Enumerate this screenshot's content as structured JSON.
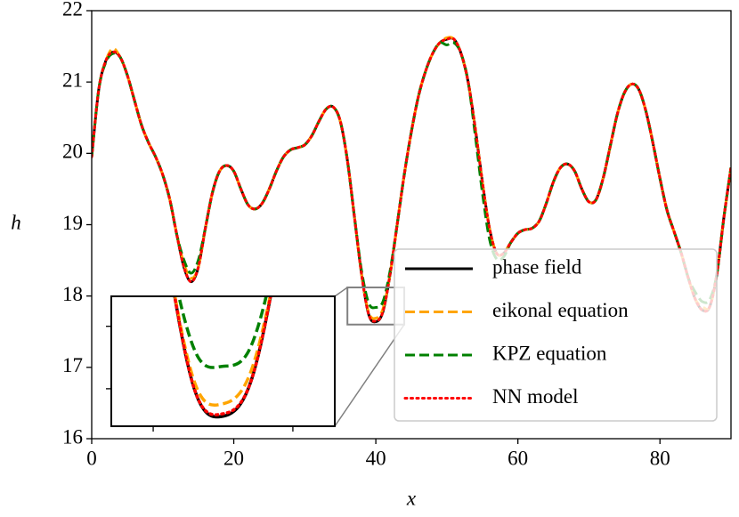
{
  "chart_data": {
    "type": "line",
    "xlabel": "x",
    "ylabel": "h",
    "x": [
      0,
      1,
      2,
      3,
      4,
      5,
      6,
      7,
      8,
      9,
      10,
      11,
      12,
      13,
      14,
      15,
      16,
      17,
      18,
      19,
      20,
      21,
      22,
      23,
      24,
      25,
      26,
      27,
      28,
      29,
      30,
      31,
      32,
      33,
      34,
      35,
      36,
      37,
      38,
      39,
      40,
      41,
      42,
      43,
      44,
      45,
      46,
      47,
      48,
      49,
      50,
      51,
      52,
      53,
      54,
      55,
      56,
      57,
      58,
      59,
      60,
      61,
      62,
      63,
      64,
      65,
      66,
      67,
      68,
      69,
      70,
      71,
      72,
      73,
      74,
      75,
      76,
      77,
      78,
      79,
      80,
      81,
      82,
      83,
      84,
      85,
      86,
      87,
      88,
      89,
      90
    ],
    "series": [
      {
        "name": "phase field",
        "color": "#000000",
        "dash": "solid",
        "values": [
          19.95,
          20.9,
          21.3,
          21.42,
          21.35,
          21.1,
          20.75,
          20.4,
          20.15,
          19.95,
          19.7,
          19.35,
          18.85,
          18.4,
          18.2,
          18.4,
          18.95,
          19.45,
          19.75,
          19.83,
          19.75,
          19.5,
          19.28,
          19.22,
          19.3,
          19.5,
          19.75,
          19.95,
          20.05,
          20.08,
          20.12,
          20.25,
          20.45,
          20.62,
          20.65,
          20.45,
          19.9,
          19.1,
          18.3,
          17.74,
          17.64,
          17.78,
          18.3,
          19.0,
          19.7,
          20.3,
          20.8,
          21.15,
          21.4,
          21.55,
          21.6,
          21.6,
          21.4,
          21.0,
          20.35,
          19.6,
          18.95,
          18.6,
          18.6,
          18.75,
          18.88,
          18.93,
          18.95,
          19.05,
          19.3,
          19.6,
          19.8,
          19.85,
          19.75,
          19.5,
          19.32,
          19.35,
          19.65,
          20.1,
          20.55,
          20.85,
          20.97,
          20.9,
          20.6,
          20.15,
          19.65,
          19.2,
          18.9,
          18.6,
          18.25,
          17.95,
          17.8,
          17.85,
          18.3,
          19.1,
          19.8
        ]
      },
      {
        "name": "eikonal equation",
        "color": "#ffa500",
        "dash": "dashed",
        "values": [
          19.95,
          20.9,
          21.3,
          21.47,
          21.35,
          21.1,
          20.75,
          20.4,
          20.15,
          19.95,
          19.7,
          19.35,
          18.85,
          18.45,
          18.25,
          18.4,
          18.95,
          19.45,
          19.75,
          19.83,
          19.75,
          19.5,
          19.28,
          19.22,
          19.3,
          19.5,
          19.75,
          19.95,
          20.05,
          20.08,
          20.12,
          20.25,
          20.45,
          20.62,
          20.65,
          20.45,
          19.9,
          19.1,
          18.3,
          17.77,
          17.69,
          17.82,
          18.3,
          19.0,
          19.7,
          20.3,
          20.8,
          21.15,
          21.4,
          21.55,
          21.62,
          21.6,
          21.4,
          21.0,
          20.35,
          19.6,
          18.95,
          18.6,
          18.6,
          18.75,
          18.88,
          18.93,
          18.95,
          19.05,
          19.3,
          19.6,
          19.8,
          19.85,
          19.75,
          19.5,
          19.32,
          19.35,
          19.65,
          20.1,
          20.55,
          20.85,
          20.97,
          20.9,
          20.6,
          20.15,
          19.65,
          19.2,
          18.9,
          18.6,
          18.25,
          17.95,
          17.85,
          17.85,
          18.3,
          19.1,
          19.8
        ]
      },
      {
        "name": "KPZ equation",
        "color": "#008000",
        "dash": "dashed",
        "values": [
          19.95,
          20.9,
          21.28,
          21.4,
          21.35,
          21.1,
          20.75,
          20.4,
          20.15,
          19.95,
          19.7,
          19.35,
          18.85,
          18.5,
          18.32,
          18.5,
          18.95,
          19.45,
          19.75,
          19.83,
          19.75,
          19.5,
          19.28,
          19.22,
          19.3,
          19.5,
          19.75,
          19.95,
          20.05,
          20.08,
          20.12,
          20.25,
          20.45,
          20.62,
          20.65,
          20.45,
          19.9,
          19.1,
          18.35,
          17.9,
          17.84,
          17.92,
          18.35,
          19.0,
          19.7,
          20.3,
          20.8,
          21.15,
          21.4,
          21.55,
          21.52,
          21.55,
          21.4,
          21.0,
          20.25,
          19.45,
          18.8,
          18.52,
          18.55,
          18.75,
          18.88,
          18.93,
          18.95,
          19.05,
          19.3,
          19.6,
          19.8,
          19.85,
          19.75,
          19.5,
          19.32,
          19.35,
          19.65,
          20.1,
          20.55,
          20.85,
          20.97,
          20.9,
          20.6,
          20.15,
          19.65,
          19.2,
          18.9,
          18.6,
          18.25,
          18.05,
          17.92,
          17.95,
          18.3,
          19.1,
          19.8
        ]
      },
      {
        "name": "NN model",
        "color": "#ff0000",
        "dash": "dotted",
        "values": [
          19.95,
          20.9,
          21.3,
          21.42,
          21.35,
          21.1,
          20.75,
          20.4,
          20.15,
          19.95,
          19.7,
          19.35,
          18.85,
          18.4,
          18.2,
          18.4,
          18.95,
          19.45,
          19.75,
          19.83,
          19.75,
          19.5,
          19.28,
          19.22,
          19.3,
          19.5,
          19.75,
          19.95,
          20.05,
          20.08,
          20.12,
          20.25,
          20.45,
          20.62,
          20.65,
          20.45,
          19.9,
          19.1,
          18.3,
          17.74,
          17.65,
          17.78,
          18.3,
          19.0,
          19.7,
          20.3,
          20.8,
          21.15,
          21.4,
          21.55,
          21.6,
          21.6,
          21.4,
          21.0,
          20.35,
          19.6,
          18.95,
          18.6,
          18.6,
          18.75,
          18.88,
          18.93,
          18.95,
          19.05,
          19.3,
          19.6,
          19.8,
          19.85,
          19.75,
          19.5,
          19.32,
          19.35,
          19.65,
          20.1,
          20.55,
          20.85,
          20.97,
          20.9,
          20.6,
          20.15,
          19.65,
          19.2,
          18.9,
          18.6,
          18.25,
          17.95,
          17.8,
          17.85,
          18.3,
          19.1,
          19.8
        ]
      }
    ],
    "xlim": [
      0,
      90
    ],
    "xticks": [
      0,
      20,
      40,
      60,
      80
    ],
    "ylim": [
      16,
      22
    ],
    "yticks": [
      16,
      17,
      18,
      19,
      20,
      21,
      22
    ],
    "legend": "lower right",
    "inset": {
      "xlim": [
        36,
        44
      ],
      "ylim": [
        17.6,
        18.12
      ],
      "xticks": [
        37.5,
        42.5
      ],
      "yticks": [
        17.75,
        18.0
      ]
    }
  }
}
